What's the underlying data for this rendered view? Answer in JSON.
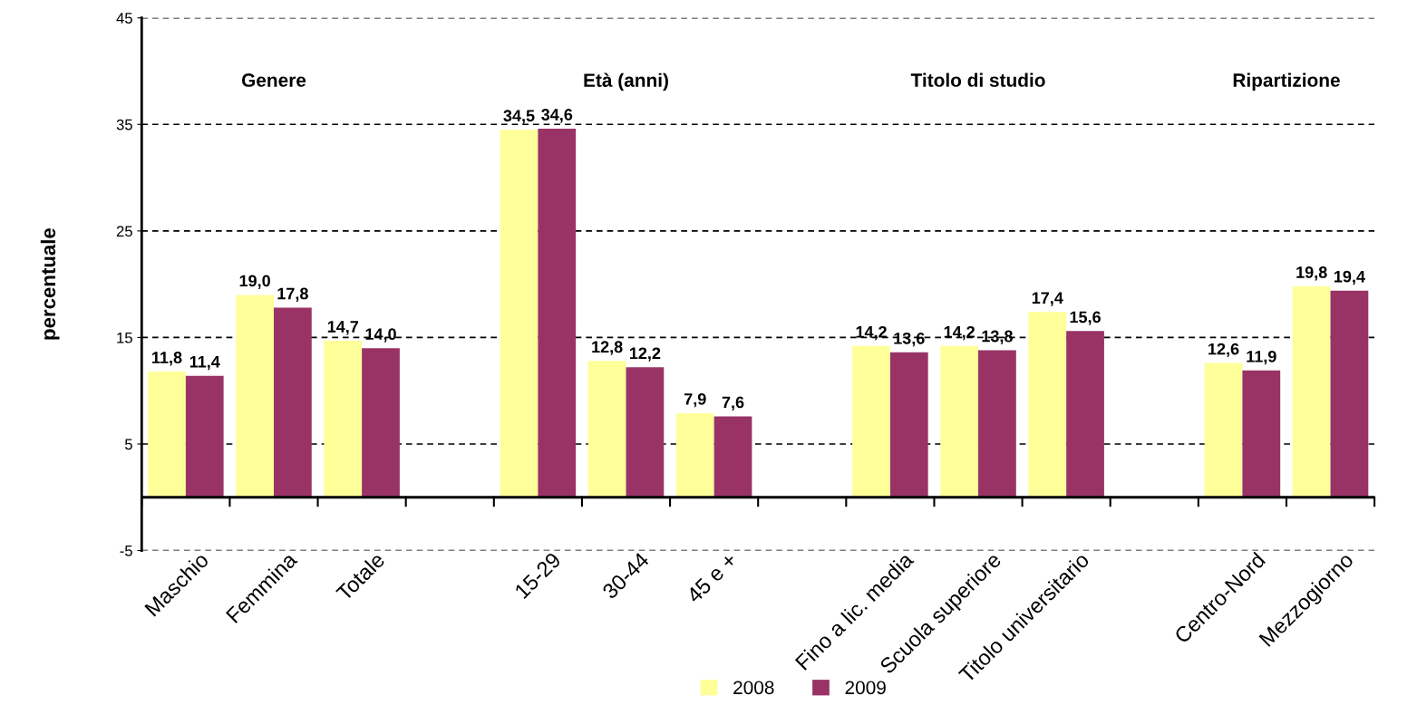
{
  "chart_data": {
    "type": "bar",
    "ylabel": "percentuale",
    "categories": [
      "Maschio",
      "Femmina",
      "Totale",
      null,
      "15-29",
      "30-44",
      "45 e +",
      null,
      "Fino a lic. media",
      "Scuola superiore",
      "Titolo universitario",
      null,
      "Centro-Nord",
      "Mezzogiorno"
    ],
    "series": [
      {
        "name": "2008",
        "color": "#ffff99",
        "values": [
          11.8,
          19.0,
          14.7,
          null,
          34.5,
          12.8,
          7.9,
          null,
          14.2,
          14.2,
          17.4,
          null,
          12.6,
          19.8
        ],
        "value_labels": [
          "11,8",
          "19,0",
          "14,7",
          null,
          "34,5",
          "12,8",
          "7,9",
          null,
          "14,2",
          "14,2",
          "17,4",
          null,
          "12,6",
          "19,8"
        ]
      },
      {
        "name": "2009",
        "color": "#993366",
        "values": [
          11.4,
          17.8,
          14.0,
          null,
          34.6,
          12.2,
          7.6,
          null,
          13.6,
          13.8,
          15.6,
          null,
          11.9,
          19.4
        ],
        "value_labels": [
          "11,4",
          "17,8",
          "14,0",
          null,
          "34,6",
          "12,2",
          "7,6",
          null,
          "13,6",
          "13,8",
          "15,6",
          null,
          "11,9",
          "19,4"
        ]
      }
    ],
    "annotations": [
      "Genere",
      "Età (anni)",
      "Titolo di studio",
      "Ripartizione"
    ],
    "ylim": [
      -5,
      45
    ],
    "yticks": [
      -5,
      5,
      15,
      25,
      35,
      45
    ],
    "grid": "y",
    "legend": "bottom"
  }
}
